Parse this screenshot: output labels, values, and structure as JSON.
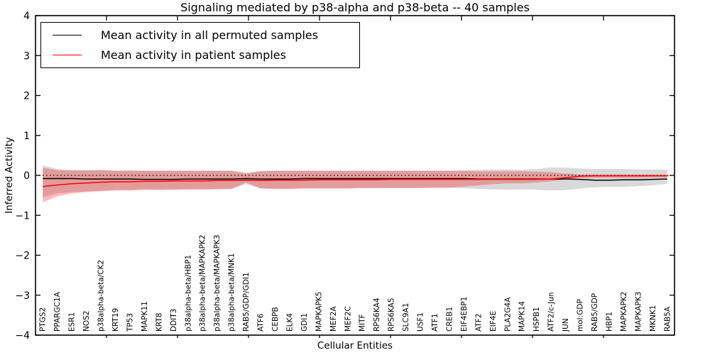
{
  "legend": {
    "items": [
      {
        "label": "Mean activity in all permuted samples",
        "color": "#000000"
      },
      {
        "label": "Mean activity in patient samples",
        "color": "#ff0000"
      }
    ]
  },
  "chart_data": {
    "type": "line",
    "title": "Signaling mediated by p38-alpha and p38-beta -- 40 samples",
    "xlabel": "Cellular Entities",
    "ylabel": "Inferred Activity",
    "ylim": [
      -4,
      4
    ],
    "yticks": [
      4,
      3,
      2,
      1,
      0,
      -1,
      -2,
      -3,
      -4
    ],
    "grid": false,
    "legend_position": "upper left",
    "zero_reference_line": {
      "style": "dotted",
      "y": 0,
      "color": "#000000"
    },
    "categories": [
      "PTGS2",
      "PPARGC1A",
      "ESR1",
      "NOS2",
      "p38alpha-beta/CK2",
      "KRT19",
      "TP53",
      "MAPK11",
      "KRT8",
      "DDIT3",
      "p38alpha-beta/HBP1",
      "p38alpha-beta/MAPKAPK2",
      "p38alpha-beta/MAPKAPK3",
      "p38alpha-beta/MNK1",
      "RAB5/GDP/GDI1",
      "ATF6",
      "CEBPB",
      "ELK4",
      "GDI1",
      "MAPKAPK5",
      "MEF2A",
      "MEF2C",
      "MITF",
      "RPS6KA4",
      "RPS6KA5",
      "SLC9A1",
      "USF1",
      "ATF1",
      "CREB1",
      "EIF4EBP1",
      "ATF2",
      "EIF4E",
      "PLA2G4A",
      "MAPK14",
      "HSPB1",
      "ATF2/c-Jun",
      "JUN",
      "mol:GDP",
      "RAB5/GDP",
      "HBP1",
      "MAPKAPK2",
      "MAPKAPK3",
      "MKNK1",
      "RAB5A"
    ],
    "series": [
      {
        "name": "Mean activity in all permuted samples",
        "color": "#000000",
        "values": [
          -0.08,
          -0.08,
          -0.08,
          -0.09,
          -0.09,
          -0.09,
          -0.09,
          -0.1,
          -0.1,
          -0.1,
          -0.09,
          -0.09,
          -0.09,
          -0.09,
          -0.08,
          -0.09,
          -0.09,
          -0.09,
          -0.08,
          -0.08,
          -0.08,
          -0.08,
          -0.08,
          -0.08,
          -0.08,
          -0.08,
          -0.08,
          -0.08,
          -0.08,
          -0.08,
          -0.09,
          -0.09,
          -0.09,
          -0.09,
          -0.09,
          -0.09,
          -0.09,
          -0.1,
          -0.12,
          -0.12,
          -0.11,
          -0.11,
          -0.1,
          -0.09
        ]
      },
      {
        "name": "Mean activity in patient samples",
        "color": "#ff0000",
        "values": [
          -0.28,
          -0.24,
          -0.21,
          -0.19,
          -0.17,
          -0.16,
          -0.16,
          -0.15,
          -0.15,
          -0.14,
          -0.14,
          -0.14,
          -0.13,
          -0.13,
          -0.12,
          -0.13,
          -0.12,
          -0.12,
          -0.12,
          -0.11,
          -0.11,
          -0.11,
          -0.11,
          -0.11,
          -0.1,
          -0.1,
          -0.1,
          -0.1,
          -0.1,
          -0.1,
          -0.1,
          -0.1,
          -0.1,
          -0.1,
          -0.1,
          -0.09,
          -0.06,
          -0.02,
          -0.01,
          -0.01,
          -0.01,
          -0.01,
          -0.01,
          -0.01
        ]
      }
    ],
    "bands": [
      {
        "name": "permuted-std-band",
        "color": "#000000",
        "opacity": 0.15,
        "upper": [
          0.25,
          0.16,
          0.14,
          0.13,
          0.14,
          0.12,
          0.12,
          0.12,
          0.12,
          0.12,
          0.12,
          0.12,
          0.12,
          0.12,
          0.07,
          0.11,
          0.12,
          0.12,
          0.12,
          0.12,
          0.12,
          0.12,
          0.12,
          0.12,
          0.12,
          0.12,
          0.12,
          0.12,
          0.12,
          0.13,
          0.14,
          0.15,
          0.15,
          0.14,
          0.16,
          0.2,
          0.19,
          0.17,
          0.16,
          0.16,
          0.16,
          0.15,
          0.15,
          0.14
        ],
        "lower": [
          -0.55,
          -0.45,
          -0.42,
          -0.4,
          -0.38,
          -0.36,
          -0.36,
          -0.35,
          -0.35,
          -0.35,
          -0.34,
          -0.34,
          -0.34,
          -0.33,
          -0.22,
          -0.32,
          -0.33,
          -0.33,
          -0.32,
          -0.32,
          -0.32,
          -0.32,
          -0.31,
          -0.31,
          -0.31,
          -0.31,
          -0.31,
          -0.31,
          -0.31,
          -0.32,
          -0.34,
          -0.35,
          -0.36,
          -0.35,
          -0.36,
          -0.38,
          -0.37,
          -0.33,
          -0.3,
          -0.29,
          -0.29,
          -0.27,
          -0.25,
          -0.21
        ]
      },
      {
        "name": "patient-std-band",
        "color": "#ff0000",
        "opacity": 0.28,
        "upper": [
          0.19,
          0.13,
          0.12,
          0.12,
          0.13,
          0.11,
          0.12,
          0.11,
          0.11,
          0.11,
          0.11,
          0.11,
          0.11,
          0.11,
          0.05,
          0.1,
          0.11,
          0.11,
          0.11,
          0.11,
          0.11,
          0.11,
          0.11,
          0.11,
          0.11,
          0.11,
          0.11,
          0.11,
          0.11,
          0.11,
          0.1,
          0.1,
          0.1,
          0.1,
          0.09,
          0.08,
          0.05,
          0.02,
          0.02,
          0.02,
          0.02,
          0.02,
          0.02,
          0.02
        ],
        "lower": [
          -0.67,
          -0.52,
          -0.45,
          -0.42,
          -0.4,
          -0.38,
          -0.38,
          -0.36,
          -0.37,
          -0.36,
          -0.36,
          -0.36,
          -0.35,
          -0.34,
          -0.18,
          -0.33,
          -0.34,
          -0.34,
          -0.33,
          -0.33,
          -0.33,
          -0.33,
          -0.32,
          -0.32,
          -0.32,
          -0.32,
          -0.32,
          -0.31,
          -0.31,
          -0.28,
          -0.25,
          -0.22,
          -0.2,
          -0.2,
          -0.18,
          -0.15,
          -0.1,
          -0.06,
          -0.06,
          -0.06,
          -0.06,
          -0.06,
          -0.05,
          -0.05
        ]
      }
    ]
  }
}
